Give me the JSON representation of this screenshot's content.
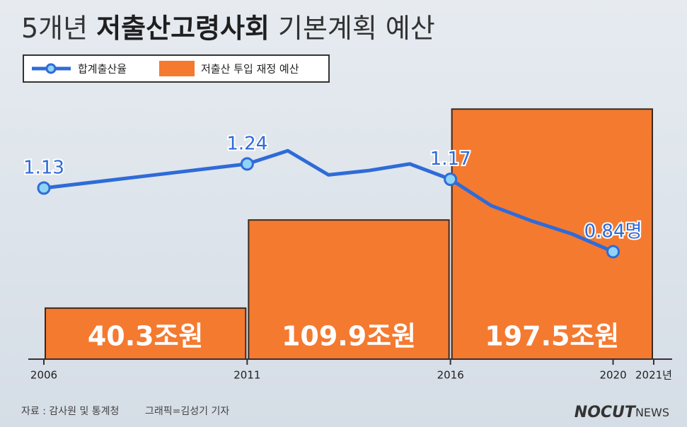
{
  "chart_data": {
    "type": "bar_line",
    "title_parts": [
      "5개년 ",
      "저출산고령사회",
      " 기본계획 예산"
    ],
    "legend": "top-left",
    "xlim": [
      2006,
      2021
    ],
    "xticks": [
      2006,
      2011,
      2016,
      2020,
      {
        "value": 2021,
        "label": "2021년"
      }
    ],
    "ylim": [
      0.35,
      1.62
    ],
    "y2lim": [
      0,
      220
    ],
    "series": [
      {
        "name": "합계출산율",
        "type": "line",
        "color": "#2f6bd8",
        "x": [
          2006,
          2011,
          2012,
          2013,
          2014,
          2015,
          2016,
          2017,
          2018,
          2019,
          2020
        ],
        "values": [
          1.13,
          1.24,
          1.3,
          1.19,
          1.21,
          1.24,
          1.17,
          1.05,
          0.98,
          0.92,
          0.84
        ],
        "value_labels": [
          "1.13",
          "1.24",
          null,
          null,
          null,
          null,
          "1.17",
          null,
          null,
          null,
          "0.84명"
        ]
      },
      {
        "name": "저출산 투입 재정 예산",
        "type": "bar",
        "axis": "y2",
        "color": "#f47a30",
        "bins": [
          2006,
          2011,
          2016,
          2021
        ],
        "values": [
          40.3,
          109.9,
          197.5
        ],
        "value_labels": [
          "40.3조원",
          "109.9조원",
          "197.5조원"
        ]
      }
    ],
    "source": "자료 : 감사원 및 통계청",
    "credit": "그래픽=김성기 기자",
    "logo": [
      "NOCUT",
      "NEWS"
    ]
  }
}
